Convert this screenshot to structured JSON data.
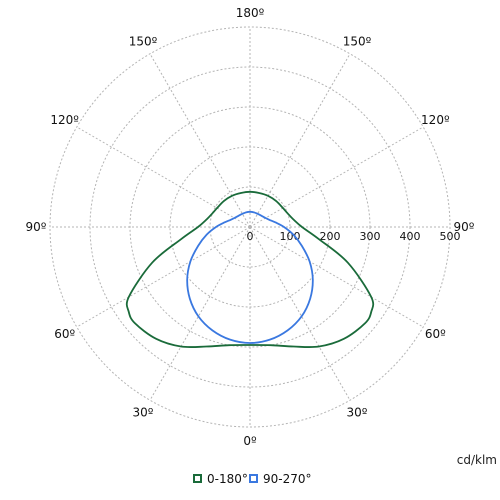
{
  "chart_data": {
    "type": "polar",
    "unit_label": "cd/klm",
    "radial_ticks": [
      0,
      100,
      200,
      300,
      400,
      500
    ],
    "radial_max": 500,
    "angle_labels": [
      "180º",
      "150º",
      "150º",
      "120º",
      "120º",
      "90º",
      "90º",
      "60º",
      "60º",
      "30º",
      "30º",
      "0º"
    ],
    "grid": true,
    "legend_position": "bottom",
    "series": [
      {
        "name": "0-180°",
        "color": "#1a6b3a",
        "points": [
          {
            "angle": 0,
            "value": 295
          },
          {
            "angle": 10,
            "value": 300
          },
          {
            "angle": 20,
            "value": 318
          },
          {
            "angle": 30,
            "value": 345
          },
          {
            "angle": 40,
            "value": 365
          },
          {
            "angle": 50,
            "value": 375
          },
          {
            "angle": 55,
            "value": 370
          },
          {
            "angle": 60,
            "value": 350
          },
          {
            "angle": 70,
            "value": 260
          },
          {
            "angle": 80,
            "value": 175
          },
          {
            "angle": 90,
            "value": 130
          },
          {
            "angle": 100,
            "value": 110
          },
          {
            "angle": 110,
            "value": 100
          },
          {
            "angle": 120,
            "value": 95
          },
          {
            "angle": 135,
            "value": 92
          },
          {
            "angle": 150,
            "value": 90
          },
          {
            "angle": 165,
            "value": 88
          },
          {
            "angle": 180,
            "value": 88
          }
        ]
      },
      {
        "name": "90-270°",
        "color": "#3a78e0",
        "points": [
          {
            "angle": 0,
            "value": 290
          },
          {
            "angle": 10,
            "value": 286
          },
          {
            "angle": 20,
            "value": 275
          },
          {
            "angle": 30,
            "value": 258
          },
          {
            "angle": 40,
            "value": 234
          },
          {
            "angle": 50,
            "value": 205
          },
          {
            "angle": 60,
            "value": 172
          },
          {
            "angle": 70,
            "value": 138
          },
          {
            "angle": 80,
            "value": 110
          },
          {
            "angle": 90,
            "value": 85
          },
          {
            "angle": 100,
            "value": 65
          },
          {
            "angle": 110,
            "value": 52
          },
          {
            "angle": 120,
            "value": 45
          },
          {
            "angle": 135,
            "value": 40
          },
          {
            "angle": 150,
            "value": 38
          },
          {
            "angle": 165,
            "value": 38
          },
          {
            "angle": 180,
            "value": 38
          }
        ]
      }
    ]
  }
}
